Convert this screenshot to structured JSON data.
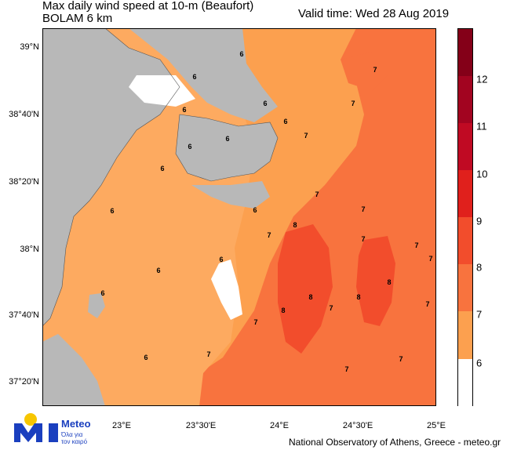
{
  "title_line1": "Max daily wind speed at 10-m (Beaufort)",
  "title_line2": "BOLAM 6 km",
  "valid_time": "Valid time: Wed 28 Aug 2019",
  "lat_labels": [
    "39°N",
    "38°40'N",
    "38°20'N",
    "38°N",
    "37°40'N",
    "37°20'N"
  ],
  "lon_labels": [
    "23°E",
    "23°30'E",
    "24°E",
    "24°30'E",
    "25°E"
  ],
  "colorbar": {
    "labels": [
      "6",
      "7",
      "8",
      "9",
      "10",
      "11",
      "12"
    ],
    "colors": [
      "#ffffff",
      "#fca04f",
      "#f8733e",
      "#f24d2c",
      "#e0201c",
      "#c00a23",
      "#a20420",
      "#840018"
    ]
  },
  "land_color": "#b8b8b8",
  "value_labels": [
    "6",
    "6",
    "6",
    "6",
    "6",
    "6",
    "6",
    "6",
    "6",
    "6",
    "6",
    "6",
    "6",
    "6",
    "7",
    "7",
    "7",
    "7",
    "7",
    "7",
    "7",
    "7",
    "7",
    "7",
    "7",
    "7",
    "7",
    "7",
    "7",
    "8",
    "8",
    "8",
    "8",
    "8"
  ],
  "logo": {
    "name": "Meteo",
    "sub1": "Όλα για",
    "sub2": "τον καιρό"
  },
  "footer": "National Observatory of Athens, Greece - meteo.gr"
}
